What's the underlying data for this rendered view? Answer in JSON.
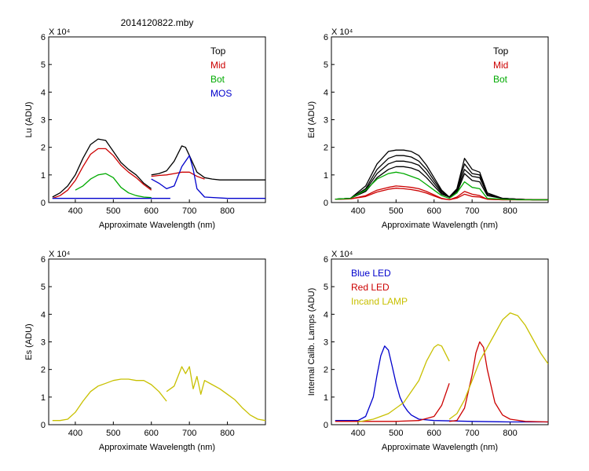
{
  "figure_title": "2014120822.mby",
  "colors": {
    "top": "#000000",
    "mid": "#cc0000",
    "bot": "#00aa00",
    "mos": "#0000cc",
    "es": "#c8c000",
    "blue_led": "#0000cc",
    "red_led": "#cc0000",
    "incand": "#c8c000"
  },
  "chart_data": [
    {
      "id": "lu",
      "type": "line",
      "title": "2014120822.mby",
      "xlabel": "Approximate Wavelength (nm)",
      "ylabel": "Lu (ADU)",
      "ylim": [
        0,
        6
      ],
      "y_multiplier": "X 10⁴",
      "xticks": [
        400,
        500,
        600,
        700,
        800
      ],
      "yticks": [
        0,
        1,
        2,
        3,
        4,
        5,
        6
      ],
      "legend": [
        "Top",
        "Mid",
        "Bot",
        "MOS"
      ],
      "series": [
        {
          "name": "Top",
          "color": "#000000",
          "segments": [
            {
              "x": [
                340,
                360,
                380,
                400,
                420,
                440,
                460,
                480,
                500,
                520,
                540,
                560,
                580,
                600
              ],
              "y": [
                0.2,
                0.35,
                0.6,
                1.0,
                1.6,
                2.1,
                2.3,
                2.25,
                1.85,
                1.45,
                1.2,
                1.0,
                0.7,
                0.5
              ]
            },
            {
              "x": [
                600,
                620,
                640,
                660,
                680,
                690,
                700,
                720,
                740,
                760,
                780,
                800,
                820,
                840,
                860,
                880,
                900
              ],
              "y": [
                1.0,
                1.05,
                1.15,
                1.5,
                2.05,
                2.0,
                1.7,
                1.1,
                0.9,
                0.85,
                0.82,
                0.82,
                0.82,
                0.82,
                0.82,
                0.82,
                0.82
              ]
            }
          ]
        },
        {
          "name": "Mid",
          "color": "#cc0000",
          "segments": [
            {
              "x": [
                340,
                360,
                380,
                400,
                420,
                440,
                460,
                480,
                500,
                520,
                540,
                560,
                580,
                600
              ],
              "y": [
                0.15,
                0.25,
                0.45,
                0.8,
                1.3,
                1.75,
                1.95,
                1.95,
                1.7,
                1.35,
                1.1,
                0.9,
                0.65,
                0.45
              ]
            },
            {
              "x": [
                600,
                620,
                640,
                660,
                680,
                700,
                720,
                740
              ],
              "y": [
                0.95,
                0.98,
                1.0,
                1.05,
                1.1,
                1.1,
                0.95,
                0.85
              ]
            }
          ]
        },
        {
          "name": "Bot",
          "color": "#00aa00",
          "segments": [
            {
              "x": [
                400,
                420,
                440,
                460,
                480,
                500,
                520,
                540,
                560,
                580,
                600
              ],
              "y": [
                0.45,
                0.6,
                0.85,
                1.0,
                1.05,
                0.9,
                0.55,
                0.35,
                0.25,
                0.2,
                0.18
              ]
            }
          ]
        },
        {
          "name": "MOS",
          "color": "#0000cc",
          "segments": [
            {
              "x": [
                340,
                400,
                500,
                600,
                650
              ],
              "y": [
                0.15,
                0.15,
                0.15,
                0.15,
                0.15
              ]
            },
            {
              "x": [
                600,
                620,
                640,
                660,
                680,
                690,
                700,
                710,
                720,
                740,
                800,
                900
              ],
              "y": [
                0.85,
                0.7,
                0.5,
                0.6,
                1.3,
                1.5,
                1.7,
                1.2,
                0.5,
                0.2,
                0.15,
                0.15
              ]
            }
          ]
        }
      ]
    },
    {
      "id": "ed",
      "type": "line",
      "title": "",
      "xlabel": "Approximate Wavelength (nm)",
      "ylabel": "Ed  (ADU)",
      "ylim": [
        0,
        6
      ],
      "y_multiplier": "X 10⁴",
      "xticks": [
        400,
        500,
        600,
        700,
        800
      ],
      "yticks": [
        0,
        1,
        2,
        3,
        4,
        5,
        6
      ],
      "legend": [
        "Top",
        "Mid",
        "Bot"
      ],
      "series": [
        {
          "name": "Top",
          "color": "#000000",
          "segments": [
            {
              "x": [
                340,
                380,
                420,
                450,
                480,
                500,
                520,
                540,
                560,
                580,
                600,
                620,
                640,
                660,
                680,
                700,
                720,
                740,
                780,
                820,
                860,
                900
              ],
              "y": [
                0.12,
                0.15,
                0.6,
                1.4,
                1.85,
                1.9,
                1.9,
                1.85,
                1.7,
                1.35,
                0.9,
                0.45,
                0.2,
                0.5,
                1.6,
                1.2,
                1.1,
                0.35,
                0.15,
                0.12,
                0.1,
                0.1
              ]
            },
            {
              "x": [
                340,
                380,
                420,
                450,
                480,
                500,
                520,
                540,
                560,
                580,
                600,
                620,
                640,
                660,
                680,
                700,
                720,
                740,
                780,
                820,
                860,
                900
              ],
              "y": [
                0.12,
                0.15,
                0.5,
                1.2,
                1.6,
                1.7,
                1.7,
                1.65,
                1.5,
                1.2,
                0.8,
                0.4,
                0.2,
                0.45,
                1.4,
                1.05,
                1.0,
                0.3,
                0.15,
                0.12,
                0.1,
                0.1
              ]
            },
            {
              "x": [
                340,
                380,
                420,
                450,
                480,
                500,
                520,
                540,
                560,
                580,
                600,
                620,
                640,
                660,
                680,
                700,
                720,
                740,
                780,
                820,
                860,
                900
              ],
              "y": [
                0.12,
                0.15,
                0.45,
                1.05,
                1.4,
                1.5,
                1.5,
                1.45,
                1.35,
                1.05,
                0.7,
                0.35,
                0.2,
                0.4,
                1.2,
                0.95,
                0.9,
                0.3,
                0.15,
                0.12,
                0.1,
                0.1
              ]
            },
            {
              "x": [
                340,
                380,
                420,
                450,
                480,
                500,
                520,
                540,
                560,
                580,
                600,
                620,
                640,
                660,
                680,
                700,
                720,
                740,
                780,
                820,
                860,
                900
              ],
              "y": [
                0.12,
                0.15,
                0.4,
                0.9,
                1.2,
                1.3,
                1.3,
                1.25,
                1.15,
                0.9,
                0.6,
                0.3,
                0.2,
                0.35,
                1.05,
                0.8,
                0.75,
                0.25,
                0.15,
                0.12,
                0.1,
                0.1
              ]
            }
          ]
        },
        {
          "name": "Mid",
          "color": "#cc0000",
          "segments": [
            {
              "x": [
                340,
                380,
                420,
                450,
                480,
                500,
                520,
                540,
                560,
                580,
                600,
                620,
                640,
                660,
                680,
                700,
                720,
                740,
                780,
                820,
                900
              ],
              "y": [
                0.12,
                0.13,
                0.25,
                0.45,
                0.55,
                0.6,
                0.58,
                0.55,
                0.5,
                0.4,
                0.28,
                0.15,
                0.1,
                0.2,
                0.4,
                0.3,
                0.25,
                0.12,
                0.1,
                0.1,
                0.1
              ]
            },
            {
              "x": [
                340,
                380,
                420,
                450,
                480,
                500,
                520,
                540,
                560,
                580,
                600,
                620,
                640,
                660,
                680,
                700,
                720,
                740,
                780,
                820,
                900
              ],
              "y": [
                0.12,
                0.13,
                0.22,
                0.38,
                0.48,
                0.52,
                0.5,
                0.47,
                0.42,
                0.34,
                0.24,
                0.14,
                0.1,
                0.16,
                0.3,
                0.22,
                0.2,
                0.12,
                0.1,
                0.1,
                0.1
              ]
            }
          ]
        },
        {
          "name": "Bot",
          "color": "#00aa00",
          "segments": [
            {
              "x": [
                340,
                380,
                420,
                450,
                480,
                500,
                520,
                540,
                560,
                580,
                600,
                620,
                640,
                660,
                680,
                700,
                720,
                740,
                780,
                820,
                900
              ],
              "y": [
                0.12,
                0.15,
                0.45,
                0.85,
                1.05,
                1.1,
                1.05,
                0.95,
                0.85,
                0.65,
                0.45,
                0.25,
                0.15,
                0.35,
                0.75,
                0.55,
                0.5,
                0.15,
                0.12,
                0.1,
                0.1
              ]
            }
          ]
        }
      ]
    },
    {
      "id": "es",
      "type": "line",
      "title": "",
      "xlabel": "Approximate Wavelength (nm)",
      "ylabel": "Es  (ADU)",
      "ylim": [
        0,
        6
      ],
      "y_multiplier": "X 10⁴",
      "xticks": [
        400,
        500,
        600,
        700,
        800
      ],
      "yticks": [
        0,
        1,
        2,
        3,
        4,
        5,
        6
      ],
      "legend": [],
      "series": [
        {
          "name": "Es",
          "color": "#c8c000",
          "segments": [
            {
              "x": [
                340,
                360,
                380,
                400,
                420,
                440,
                460,
                480,
                500,
                520,
                540,
                560,
                580,
                600,
                620,
                640
              ],
              "y": [
                0.15,
                0.15,
                0.2,
                0.45,
                0.85,
                1.2,
                1.4,
                1.5,
                1.6,
                1.65,
                1.65,
                1.6,
                1.6,
                1.45,
                1.2,
                0.85
              ]
            },
            {
              "x": [
                640,
                660,
                680,
                690,
                700,
                710,
                720,
                730,
                740,
                760,
                780,
                800,
                820,
                840,
                860,
                880,
                900
              ],
              "y": [
                1.2,
                1.4,
                2.1,
                1.85,
                2.1,
                1.3,
                1.75,
                1.1,
                1.6,
                1.45,
                1.3,
                1.1,
                0.9,
                0.6,
                0.35,
                0.2,
                0.15
              ]
            }
          ]
        }
      ]
    },
    {
      "id": "lamps",
      "type": "line",
      "title": "",
      "xlabel": "Approximate Wavelength (nm)",
      "ylabel": "Internal Calib. Lamps  (ADU)",
      "ylim": [
        0,
        6
      ],
      "y_multiplier": "X 10⁴",
      "xticks": [
        400,
        500,
        600,
        700,
        800
      ],
      "yticks": [
        0,
        1,
        2,
        3,
        4,
        5,
        6
      ],
      "legend": [
        "Blue LED",
        "Red LED",
        "Incand LAMP"
      ],
      "series": [
        {
          "name": "Blue LED",
          "color": "#0000cc",
          "segments": [
            {
              "x": [
                340,
                400,
                420,
                440,
                450,
                460,
                470,
                480,
                490,
                500,
                510,
                520,
                530,
                540,
                560,
                600,
                700,
                800,
                900
              ],
              "y": [
                0.15,
                0.15,
                0.3,
                1.0,
                1.8,
                2.5,
                2.85,
                2.7,
                2.1,
                1.5,
                1.0,
                0.7,
                0.5,
                0.35,
                0.2,
                0.15,
                0.12,
                0.1,
                0.1
              ]
            }
          ]
        },
        {
          "name": "Red LED",
          "color": "#cc0000",
          "segments": [
            {
              "x": [
                340,
                500,
                560,
                600,
                620,
                640
              ],
              "y": [
                0.12,
                0.12,
                0.15,
                0.3,
                0.7,
                1.5
              ]
            },
            {
              "x": [
                640,
                660,
                680,
                700,
                710,
                720,
                730,
                740,
                760,
                780,
                800,
                840,
                900
              ],
              "y": [
                0.12,
                0.15,
                0.6,
                1.8,
                2.6,
                3.0,
                2.8,
                2.0,
                0.8,
                0.35,
                0.2,
                0.12,
                0.1
              ]
            }
          ]
        },
        {
          "name": "Incand LAMP",
          "color": "#c8c000",
          "segments": [
            {
              "x": [
                400,
                440,
                480,
                520,
                560,
                580,
                600,
                610,
                620,
                640
              ],
              "y": [
                0.1,
                0.2,
                0.4,
                0.8,
                1.6,
                2.3,
                2.8,
                2.9,
                2.85,
                2.3
              ]
            },
            {
              "x": [
                640,
                660,
                680,
                700,
                720,
                740,
                760,
                780,
                800,
                820,
                840,
                860,
                880,
                900
              ],
              "y": [
                0.2,
                0.4,
                0.9,
                1.6,
                2.3,
                2.8,
                3.3,
                3.8,
                4.05,
                3.95,
                3.6,
                3.1,
                2.6,
                2.2
              ]
            }
          ]
        }
      ]
    }
  ]
}
